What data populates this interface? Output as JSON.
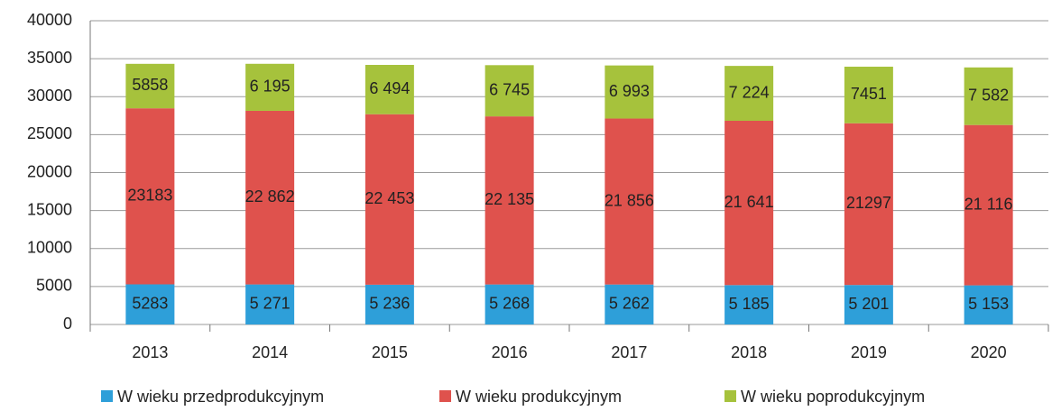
{
  "chart_data": {
    "type": "stacked_bar",
    "categories": [
      "2013",
      "2014",
      "2015",
      "2016",
      "2017",
      "2018",
      "2019",
      "2020"
    ],
    "series": [
      {
        "name": "W wieku przedprodukcyjnym",
        "color": "#2e9fd9",
        "values": [
          5283,
          5271,
          5236,
          5268,
          5262,
          5185,
          5201,
          5153
        ],
        "value_labels": [
          "5283",
          "5 271",
          "5 236",
          "5 268",
          "5 262",
          "5 185",
          "5 201",
          "5 153"
        ]
      },
      {
        "name": "W wieku produkcyjnym",
        "color": "#df524d",
        "values": [
          23183,
          22862,
          22453,
          22135,
          21856,
          21641,
          21297,
          21116
        ],
        "value_labels": [
          "23183",
          "22 862",
          "22 453",
          "22 135",
          "21 856",
          "21 641",
          "21297",
          "21 116"
        ]
      },
      {
        "name": "W wieku poprodukcyjnym",
        "color": "#a6c23c",
        "values": [
          5858,
          6195,
          6494,
          6745,
          6993,
          7224,
          7451,
          7582
        ],
        "value_labels": [
          "5858",
          "6 195",
          "6 494",
          "6 745",
          "6 993",
          "7 224",
          "7451",
          "7 582"
        ]
      }
    ],
    "ylim": [
      0,
      40000
    ],
    "yticks": [
      0,
      5000,
      10000,
      15000,
      20000,
      25000,
      30000,
      35000,
      40000
    ],
    "grid": true,
    "legend": "bottom"
  }
}
